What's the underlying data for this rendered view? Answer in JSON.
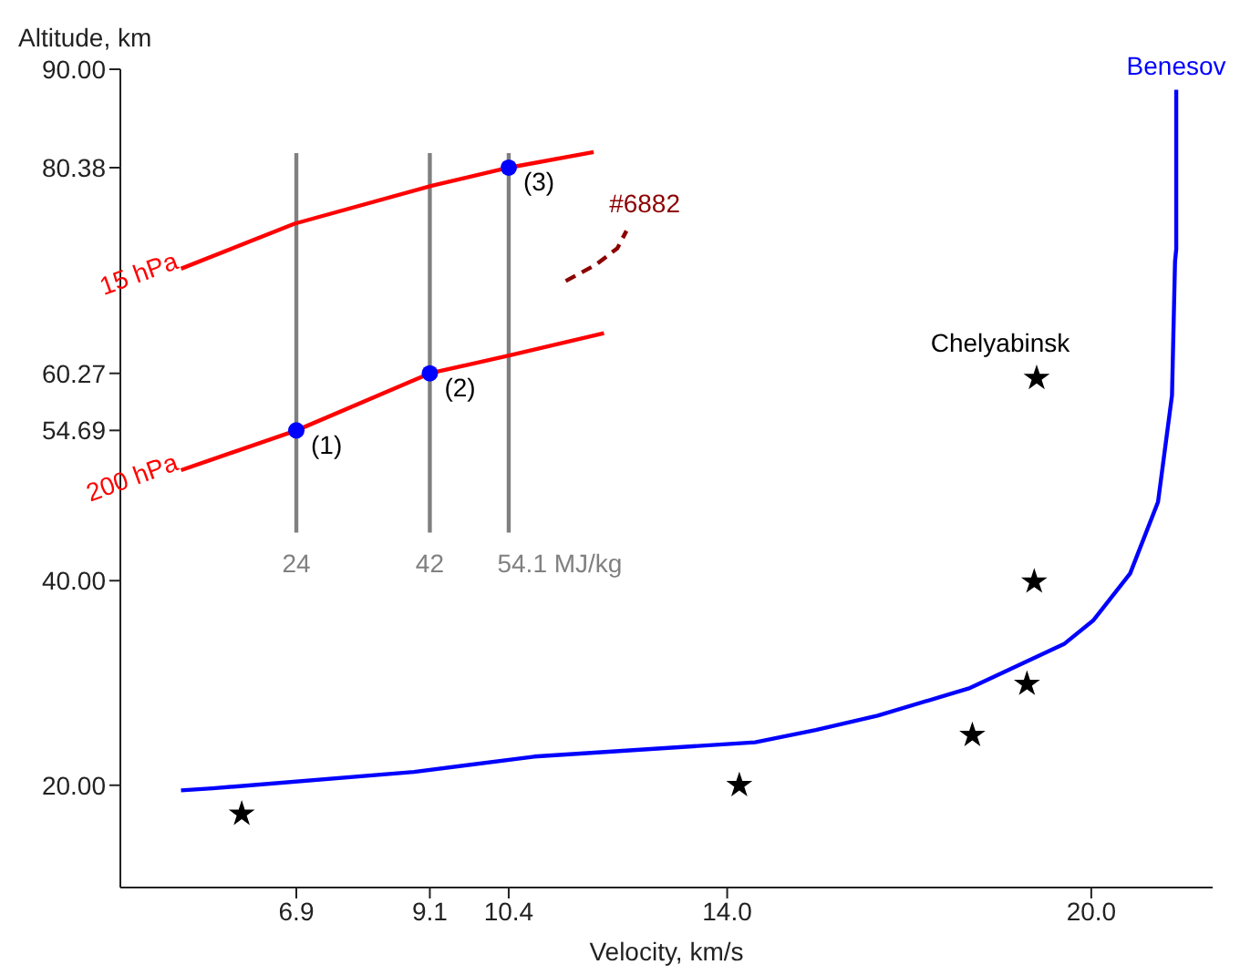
{
  "chart_data": {
    "type": "line",
    "xlabel": "Velocity, km/s",
    "ylabel": "Altitude, km",
    "xlim": [
      4,
      22
    ],
    "ylim": [
      10,
      90
    ],
    "xticks": [
      6.9,
      9.1,
      10.4,
      {
        "value": 14,
        "label": "14.0"
      },
      {
        "value": 20,
        "label": "20.0"
      }
    ],
    "yticks": [
      {
        "value": 20,
        "label": "20.00"
      },
      {
        "value": 40,
        "label": "40.00"
      },
      54.69,
      60.27,
      80.38,
      {
        "value": 90,
        "label": "90.00"
      }
    ],
    "annotations": [
      {
        "text": "(1)",
        "x": 6.9,
        "y": 54.69
      },
      {
        "text": "(2)",
        "x": 9.1,
        "y": 60.27
      },
      {
        "text": "(3)",
        "x": 10.4,
        "y": 80.38
      }
    ],
    "series": [
      {
        "name": "24",
        "color": "#808080",
        "x": [
          6.9,
          6.9
        ],
        "values": [
          44.7,
          81.8
        ]
      },
      {
        "name": "42",
        "color": "#808080",
        "x": [
          9.1,
          9.1
        ],
        "values": [
          44.7,
          81.8
        ]
      },
      {
        "name": "54.1 MJ/kg",
        "color": "#808080",
        "x": [
          10.4,
          10.4
        ],
        "values": [
          44.7,
          81.8
        ]
      },
      {
        "name": "15 hPa",
        "color": "#ff0000",
        "x": [
          5.0,
          6.87,
          9.13,
          10.4,
          11.8
        ],
        "values": [
          70.5,
          74.9,
          78.6,
          80.38,
          81.9
        ]
      },
      {
        "name": "200 hPa",
        "color": "#ff0000",
        "x": [
          5.0,
          6.9,
          9.1,
          10.39,
          11.97
        ],
        "values": [
          50.8,
          54.69,
          60.27,
          62.0,
          64.2
        ]
      },
      {
        "name": "#6882",
        "line_style": "dashed",
        "color": "#8b0000",
        "x": [
          11.34,
          11.84,
          12.19,
          12.34
        ],
        "values": [
          69.3,
          70.9,
          72.5,
          74.2
        ]
      },
      {
        "name": "Benesov",
        "color": "#0000ff",
        "x": [
          5.0,
          5.52,
          8.84,
          10.82,
          14.46,
          15.46,
          16.48,
          18.0,
          18.9,
          19.55,
          20.03,
          20.64,
          21.1,
          21.33,
          21.38,
          21.4,
          21.4,
          21.4
        ],
        "values": [
          19.5,
          19.7,
          21.3,
          22.8,
          24.2,
          25.4,
          26.8,
          29.5,
          32.0,
          33.8,
          36.1,
          40.7,
          47.7,
          58.1,
          71.2,
          72.4,
          82.5,
          88.0
        ]
      },
      {
        "type": "scatter",
        "marker": "circle",
        "color": "#0000ff",
        "x": [
          6.9,
          9.1,
          10.4
        ],
        "values": [
          54.69,
          60.27,
          80.38
        ]
      },
      {
        "name": "Chelyabinsk",
        "type": "scatter",
        "marker": "star",
        "color": "#000000",
        "x": [
          6.0,
          14.2,
          18.04,
          18.94,
          19.06,
          19.1
        ],
        "values": [
          17.2,
          20.0,
          24.9,
          29.9,
          39.9,
          59.8
        ]
      }
    ]
  }
}
